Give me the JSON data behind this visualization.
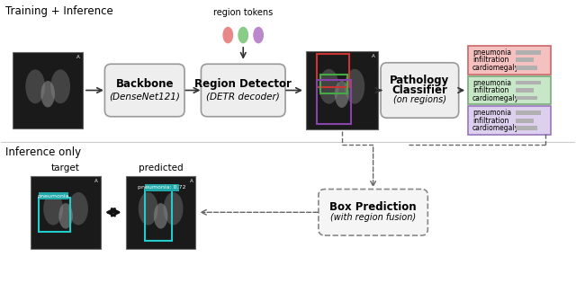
{
  "bg_color": "#ffffff",
  "top_label": "Training + Inference",
  "bottom_label": "Inference only",
  "region_tokens_label": "region tokens",
  "backbone_label1": "Backbone",
  "backbone_label2": "(DenseNet121)",
  "region_detector_label1": "Region Detector",
  "region_detector_label2": "(DETR decoder)",
  "pathology_classifier_label1": "Pathology",
  "pathology_classifier_label2": "Classifier",
  "pathology_classifier_label3": "(on regions)",
  "box_prediction_label1": "Box Prediction",
  "box_prediction_label2": "(with region fusion)",
  "target_label": "target",
  "predicted_label": "predicted",
  "pathology_texts": [
    [
      "pneumonia",
      "infiltration",
      "cardiomegaly"
    ],
    [
      "pneumonia",
      "infiltration",
      "cardiomegaly"
    ],
    [
      "pneumonia",
      "infiltration",
      "cardiomegaly"
    ]
  ],
  "pathology_facecolors": [
    "#f5c0c0",
    "#c8e6c8",
    "#ddd0ee"
  ],
  "pathology_edgecolors": [
    "#cc6666",
    "#77aa77",
    "#9977bb"
  ],
  "token_colors": [
    "#e88888",
    "#88cc88",
    "#bb88cc"
  ],
  "xray_face": "#909090",
  "xray_edge": "#555555",
  "box_red": "#cc3333",
  "box_green": "#44aa44",
  "box_purple": "#8844aa",
  "cyan_box": "#22cccc",
  "cyan_label_bg": "#22aaaa",
  "sep_color": "#cccccc",
  "arrow_color": "#333333",
  "dashed_color": "#666666"
}
